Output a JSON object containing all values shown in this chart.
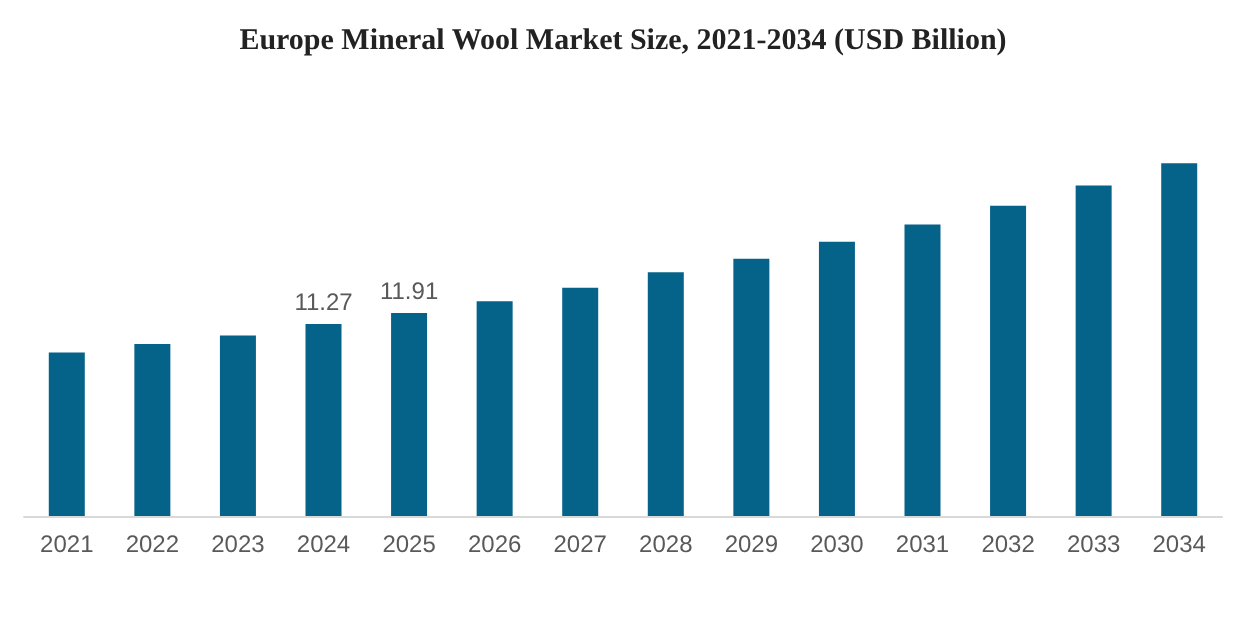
{
  "chart_data": {
    "type": "bar",
    "title": "Europe Mineral Wool Market Size, 2021-2034 (USD Billion)",
    "categories": [
      "2021",
      "2022",
      "2023",
      "2024",
      "2025",
      "2026",
      "2027",
      "2028",
      "2029",
      "2030",
      "2031",
      "2032",
      "2033",
      "2034"
    ],
    "values": [
      9.6,
      10.1,
      10.6,
      11.27,
      11.91,
      12.6,
      13.4,
      14.3,
      15.1,
      16.1,
      17.1,
      18.2,
      19.4,
      20.7
    ],
    "value_labels": [
      null,
      null,
      null,
      "11.27",
      "11.91",
      null,
      null,
      null,
      null,
      null,
      null,
      null,
      null,
      null
    ],
    "color": "#05638a",
    "grid": false
  }
}
